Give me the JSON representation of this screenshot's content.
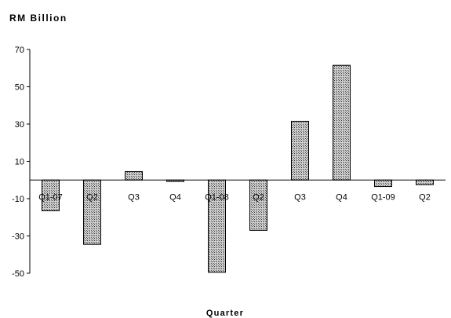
{
  "chart_data": {
    "type": "bar",
    "title": "",
    "ylabel": "RM Billion",
    "xlabel": "Quarter",
    "categories": [
      "Q1-07",
      "Q2",
      "Q3",
      "Q4",
      "Q1-08",
      "Q2",
      "Q3",
      "Q4",
      "Q1-09",
      "Q2"
    ],
    "values": [
      -16.5,
      -34.5,
      4.5,
      -0.8,
      -49.5,
      -27,
      31.5,
      61.5,
      -3.5,
      -2.5
    ],
    "ylim": [
      -50,
      70
    ],
    "yticks": [
      -50,
      -30,
      -10,
      10,
      30,
      50,
      70
    ],
    "grid": false,
    "legend": "none",
    "bar_color": "#9a9a9a"
  }
}
